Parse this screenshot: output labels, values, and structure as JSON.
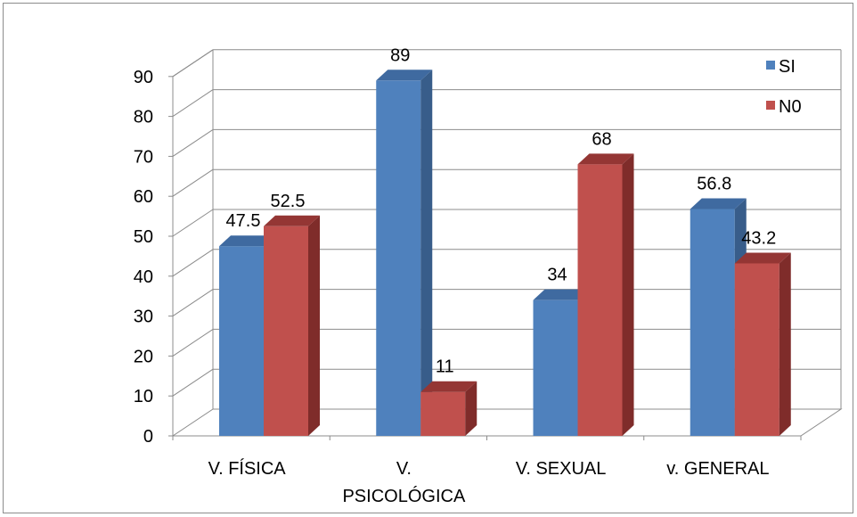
{
  "chart_data": {
    "type": "bar",
    "style": "3d-clustered-column",
    "categories": [
      [
        "V. FÍSICA"
      ],
      [
        "V.",
        "PSICOLÓGICA"
      ],
      [
        "V. SEXUAL"
      ],
      [
        "v. GENERAL"
      ]
    ],
    "series": [
      {
        "name": "SI",
        "values": [
          47.5,
          89,
          34,
          56.8
        ],
        "labels": [
          "47.5",
          "89",
          "34",
          "56.8"
        ],
        "color": "#4f81bd",
        "side_color": "#385d8a",
        "top_color": "#3f6aa0"
      },
      {
        "name": "N0",
        "values": [
          52.5,
          11,
          68,
          43.2
        ],
        "labels": [
          "52.5",
          "11",
          "68",
          "43.2"
        ],
        "color": "#c0504d",
        "side_color": "#7f2c2a",
        "top_color": "#943634"
      }
    ],
    "yticks": [
      "0",
      "10",
      "20",
      "30",
      "40",
      "50",
      "60",
      "70",
      "80",
      "90"
    ],
    "ylim": [
      0,
      90
    ],
    "grid": true,
    "legend": "top-right"
  }
}
